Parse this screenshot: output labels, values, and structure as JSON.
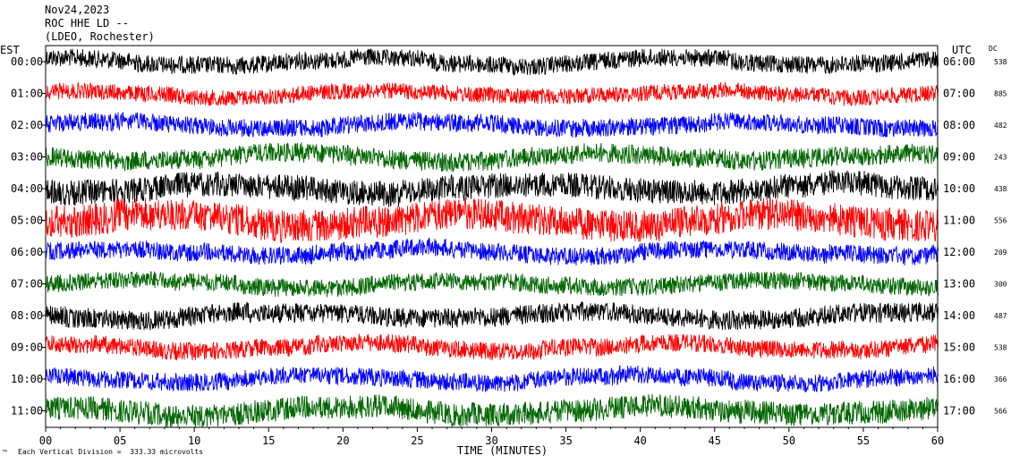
{
  "header": {
    "date": "Nov24,2023",
    "station": "ROC HHE LD --",
    "network": "(LDEO, Rochester)"
  },
  "footer": {
    "scale_note": "Each Vertical Division =  333.33 microvolts",
    "corner_mark": "™"
  },
  "chart_data": {
    "type": "line",
    "title": "",
    "xlabel": "TIME (MINUTES)",
    "x_ticks": [
      0,
      5,
      10,
      15,
      20,
      25,
      30,
      35,
      40,
      45,
      50,
      55,
      60
    ],
    "x_tick_labels": [
      "00",
      "05",
      "10",
      "15",
      "20",
      "25",
      "30",
      "35",
      "40",
      "45",
      "50",
      "55",
      "60"
    ],
    "xlim": [
      0,
      60
    ],
    "left_axis_title": "EST",
    "right_axis_title": "UTC",
    "dc_title": "DC",
    "rows": [
      {
        "est": "00:00",
        "utc": "06:00",
        "dc": "538",
        "color": "#000000",
        "amp": 1.0
      },
      {
        "est": "01:00",
        "utc": "07:00",
        "dc": "885",
        "color": "#ff0000",
        "amp": 0.9
      },
      {
        "est": "02:00",
        "utc": "08:00",
        "dc": "482",
        "color": "#0000ff",
        "amp": 1.0
      },
      {
        "est": "03:00",
        "utc": "09:00",
        "dc": "243",
        "color": "#006600",
        "amp": 1.1
      },
      {
        "est": "04:00",
        "utc": "10:00",
        "dc": "438",
        "color": "#000000",
        "amp": 1.4
      },
      {
        "est": "05:00",
        "utc": "11:00",
        "dc": "556",
        "color": "#ff0000",
        "amp": 1.8
      },
      {
        "est": "06:00",
        "utc": "12:00",
        "dc": "209",
        "color": "#0000ff",
        "amp": 1.0
      },
      {
        "est": "07:00",
        "utc": "13:00",
        "dc": "300",
        "color": "#006600",
        "amp": 1.0
      },
      {
        "est": "08:00",
        "utc": "14:00",
        "dc": "487",
        "color": "#000000",
        "amp": 1.1
      },
      {
        "est": "09:00",
        "utc": "15:00",
        "dc": "538",
        "color": "#ff0000",
        "amp": 1.0
      },
      {
        "est": "10:00",
        "utc": "16:00",
        "dc": "366",
        "color": "#0000ff",
        "amp": 1.0
      },
      {
        "est": "11:00",
        "utc": "17:00",
        "dc": "566",
        "color": "#006600",
        "amp": 1.3
      }
    ]
  }
}
